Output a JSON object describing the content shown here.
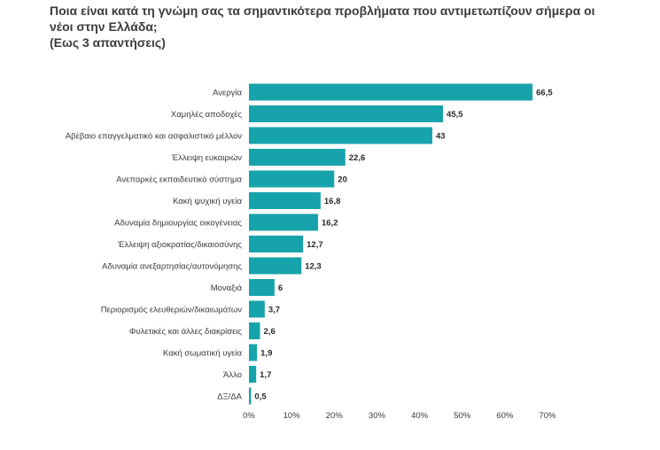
{
  "header": {
    "title": "Ποια είναι κατά τη γνώμη σας τα σημαντικότερα προβλήματα που αντιμετωπίζουν σήμερα οι νέοι στην Ελλάδα;",
    "subtitle": "(Εως 3 απαντήσεις)"
  },
  "chart_data": {
    "type": "bar",
    "orientation": "horizontal",
    "categories": [
      "Ανεργία",
      "Χαμηλές αποδοχές",
      "Αβέβαιο επαγγελματικό και ασφαλιστικό μέλλον",
      "Έλλειψη ευκαιριών",
      "Ανεπαρκές εκπαιδευτικό σύστημα",
      "Κακή ψυχική υγεία",
      "Αδυναμία δημιουργίας οικογένειας",
      "Έλλειψη αξιοκρατίας/δικαιοσύνης",
      "Αδυναμία ανεξαρτησίας/αυτονόμησης",
      "Μοναξιά",
      "Περιορισμός ελευθεριών/δικαιωμάτων",
      "Φυλετικές και άλλες διακρίσεις",
      "Κακή σωματική υγεία",
      "Άλλο",
      "ΔΞ/ΔΑ"
    ],
    "values": [
      66.5,
      45.5,
      43,
      22.6,
      20,
      16.8,
      16.2,
      12.7,
      12.3,
      6,
      3.7,
      2.6,
      1.9,
      1.7,
      0.5
    ],
    "value_labels": [
      "66,5",
      "45,5",
      "43",
      "22,6",
      "20",
      "16,8",
      "16,2",
      "12,7",
      "12,3",
      "6",
      "3,7",
      "2,6",
      "1,9",
      "1,7",
      "0,5"
    ],
    "xlim": [
      0,
      70
    ],
    "x_ticks": [
      0,
      10,
      20,
      30,
      40,
      50,
      60,
      70
    ],
    "x_tick_labels": [
      "0%",
      "10%",
      "20%",
      "30%",
      "40%",
      "50%",
      "60%",
      "70%"
    ],
    "bar_color": "#17a3ab",
    "grid": false,
    "legend": "none"
  }
}
